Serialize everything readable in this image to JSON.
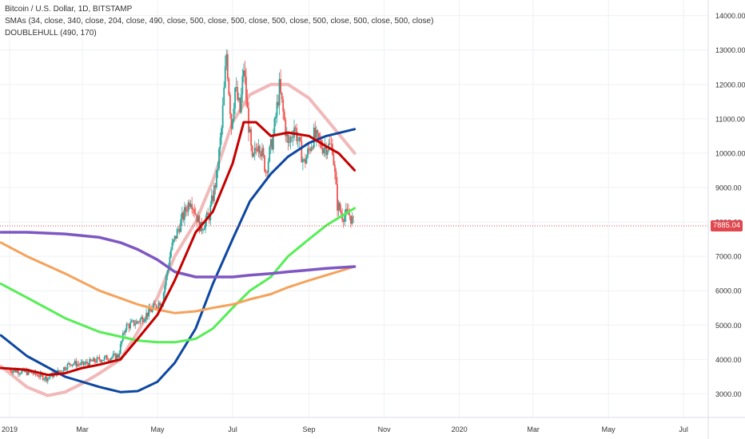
{
  "legend": {
    "title": "Bitcoin / U.S. Dollar, 1D, BITSTAMP",
    "smas": "SMAs (34, close, 340, close, 204, close, 490, close, 500, close, 500, close, 500, close, 500, close, 500, close, 500, close)",
    "doublehull": "DOUBLEHULL (490, 170)"
  },
  "last_price_label": "7885.04",
  "colors": {
    "up_candle": "#26a69a",
    "down_candle": "#ef5350",
    "sma34": "#c40000",
    "sma340": "#0d47a1",
    "sma204": "#55ee55",
    "sma490": "#f5a25a",
    "sma500": "#7e57c2",
    "hull": "#f1b9b9",
    "price_line": "#e0484f"
  },
  "chart_data": {
    "type": "line",
    "ylim": [
      2600,
      14600
    ],
    "y_ticks": [
      "14000.00",
      "13000.00",
      "12000.00",
      "11000.00",
      "10000.00",
      "9000.00",
      "8000.00",
      "7000.00",
      "6000.00",
      "5000.00",
      "4000.00",
      "3000.00"
    ],
    "x_ticks": [
      "2019",
      "Mar",
      "May",
      "Jul",
      "Sep",
      "Nov",
      "2020",
      "Mar",
      "May",
      "Jul"
    ],
    "last_price": 7885.04,
    "candles_close": [
      [
        "2019-01-01",
        3700
      ],
      [
        "2019-01-10",
        3650
      ],
      [
        "2019-01-20",
        3600
      ],
      [
        "2019-01-31",
        3450
      ],
      [
        "2019-02-10",
        3650
      ],
      [
        "2019-02-20",
        3900
      ],
      [
        "2019-03-01",
        3850
      ],
      [
        "2019-03-15",
        4000
      ],
      [
        "2019-03-30",
        4100
      ],
      [
        "2019-04-05",
        4950
      ],
      [
        "2019-04-15",
        5100
      ],
      [
        "2019-04-25",
        5400
      ],
      [
        "2019-05-05",
        5750
      ],
      [
        "2019-05-12",
        7200
      ],
      [
        "2019-05-20",
        8000
      ],
      [
        "2019-05-28",
        8700
      ],
      [
        "2019-06-05",
        7800
      ],
      [
        "2019-06-12",
        8200
      ],
      [
        "2019-06-18",
        9300
      ],
      [
        "2019-06-22",
        10700
      ],
      [
        "2019-06-26",
        12900
      ],
      [
        "2019-06-30",
        10800
      ],
      [
        "2019-07-03",
        11900
      ],
      [
        "2019-07-07",
        11200
      ],
      [
        "2019-07-10",
        12500
      ],
      [
        "2019-07-13",
        11200
      ],
      [
        "2019-07-17",
        9700
      ],
      [
        "2019-07-22",
        10400
      ],
      [
        "2019-07-28",
        9500
      ],
      [
        "2019-08-03",
        10500
      ],
      [
        "2019-08-08",
        11900
      ],
      [
        "2019-08-15",
        10200
      ],
      [
        "2019-08-20",
        10800
      ],
      [
        "2019-08-28",
        9700
      ],
      [
        "2019-09-05",
        10500
      ],
      [
        "2019-09-12",
        10200
      ],
      [
        "2019-09-20",
        10200
      ],
      [
        "2019-09-24",
        8500
      ],
      [
        "2019-09-28",
        8200
      ],
      [
        "2019-10-04",
        8200
      ],
      [
        "2019-10-08",
        7885
      ]
    ],
    "series": [
      {
        "name": "SMA 34",
        "x": [
          "2018-12-25",
          "2019-01-15",
          "2019-02-01",
          "2019-02-15",
          "2019-03-01",
          "2019-03-15",
          "2019-04-01",
          "2019-04-15",
          "2019-05-01",
          "2019-05-15",
          "2019-06-01",
          "2019-06-15",
          "2019-07-01",
          "2019-07-10",
          "2019-07-20",
          "2019-08-01",
          "2019-08-15",
          "2019-09-01",
          "2019-09-15",
          "2019-09-25",
          "2019-10-08"
        ],
        "values": [
          3750,
          3700,
          3550,
          3600,
          3750,
          3850,
          4000,
          4600,
          5300,
          6300,
          7700,
          8300,
          9700,
          10900,
          10900,
          10500,
          10600,
          10500,
          10200,
          10000,
          9500
        ]
      },
      {
        "name": "SMA 340",
        "x": [
          "2018-12-25",
          "2019-01-15",
          "2019-02-15",
          "2019-03-15",
          "2019-04-01",
          "2019-04-15",
          "2019-05-01",
          "2019-05-15",
          "2019-06-01",
          "2019-06-15",
          "2019-07-01",
          "2019-07-15",
          "2019-08-01",
          "2019-08-15",
          "2019-09-01",
          "2019-09-15",
          "2019-10-08"
        ],
        "values": [
          4700,
          4100,
          3500,
          3200,
          3050,
          3080,
          3350,
          3900,
          4900,
          6200,
          7500,
          8600,
          9400,
          9900,
          10300,
          10500,
          10700
        ]
      },
      {
        "name": "SMA 204",
        "x": [
          "2018-12-25",
          "2019-01-15",
          "2019-02-15",
          "2019-03-15",
          "2019-04-15",
          "2019-05-01",
          "2019-05-15",
          "2019-06-01",
          "2019-06-15",
          "2019-07-01",
          "2019-07-15",
          "2019-08-01",
          "2019-08-15",
          "2019-09-01",
          "2019-09-15",
          "2019-10-08"
        ],
        "values": [
          6200,
          5800,
          5200,
          4800,
          4550,
          4500,
          4500,
          4600,
          4900,
          5500,
          6000,
          6400,
          7000,
          7500,
          7900,
          8400
        ]
      },
      {
        "name": "SMA 490",
        "x": [
          "2018-12-25",
          "2019-01-15",
          "2019-02-15",
          "2019-03-15",
          "2019-04-15",
          "2019-05-01",
          "2019-05-15",
          "2019-06-01",
          "2019-06-15",
          "2019-07-01",
          "2019-07-15",
          "2019-08-01",
          "2019-08-15",
          "2019-09-01",
          "2019-09-15",
          "2019-10-08"
        ],
        "values": [
          7400,
          7000,
          6500,
          6000,
          5600,
          5450,
          5350,
          5400,
          5500,
          5600,
          5750,
          5900,
          6100,
          6300,
          6450,
          6700
        ]
      },
      {
        "name": "SMA 500",
        "x": [
          "2018-12-25",
          "2019-01-15",
          "2019-02-15",
          "2019-03-15",
          "2019-04-01",
          "2019-04-15",
          "2019-05-01",
          "2019-05-15",
          "2019-06-01",
          "2019-06-15",
          "2019-07-01",
          "2019-07-15",
          "2019-08-01",
          "2019-08-15",
          "2019-09-01",
          "2019-09-15",
          "2019-10-08"
        ],
        "values": [
          7700,
          7700,
          7650,
          7550,
          7400,
          7200,
          6900,
          6550,
          6400,
          6400,
          6400,
          6450,
          6500,
          6550,
          6600,
          6650,
          6700
        ]
      },
      {
        "name": "DOUBLEHULL",
        "x": [
          "2018-12-25",
          "2019-01-15",
          "2019-02-01",
          "2019-02-15",
          "2019-03-01",
          "2019-03-15",
          "2019-04-01",
          "2019-04-15",
          "2019-05-01",
          "2019-05-15",
          "2019-06-01",
          "2019-06-15",
          "2019-07-01",
          "2019-07-15",
          "2019-08-01",
          "2019-08-15",
          "2019-09-01",
          "2019-09-15",
          "2019-10-08"
        ],
        "values": [
          3800,
          3200,
          2950,
          3050,
          3300,
          3600,
          4000,
          4800,
          5800,
          7000,
          8000,
          9200,
          10900,
          11700,
          12000,
          12000,
          11600,
          11000,
          10000
        ]
      }
    ]
  }
}
